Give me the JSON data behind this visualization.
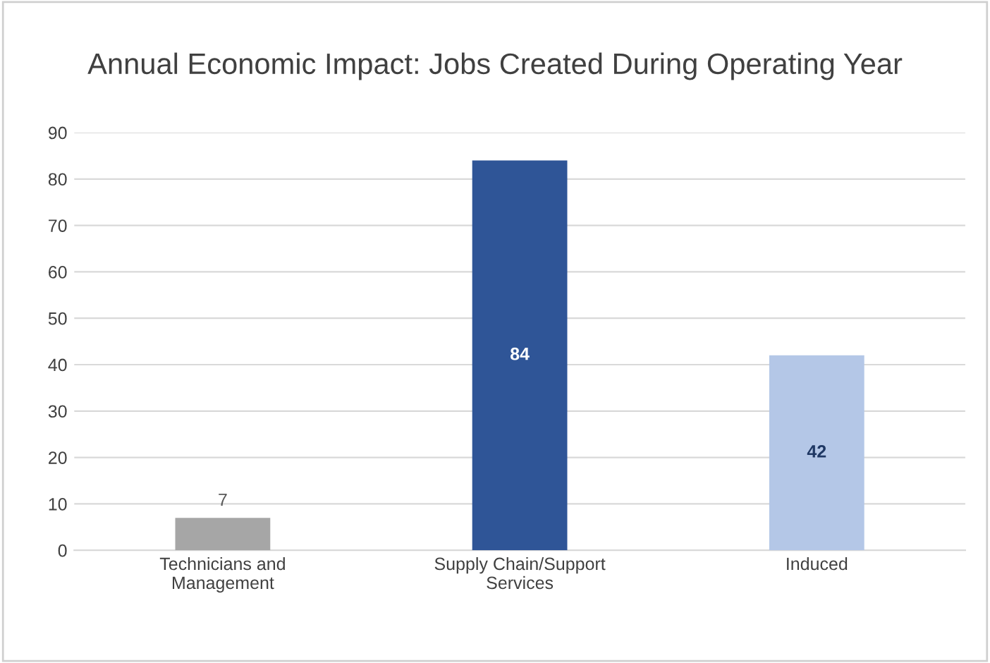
{
  "chart_data": {
    "type": "bar",
    "title": "Annual Economic Impact: Jobs Created During Operating Year",
    "categories": [
      "Technicians and Management",
      "Supply Chain/Support Services",
      "Induced"
    ],
    "values": [
      7,
      84,
      42
    ],
    "colors": [
      "#a6a6a6",
      "#2f5597",
      "#b4c7e7"
    ],
    "ylim": [
      0,
      90
    ],
    "yticks": [
      0,
      10,
      20,
      30,
      40,
      50,
      60,
      70,
      80,
      90
    ],
    "grid": "y",
    "data_labels": true
  }
}
